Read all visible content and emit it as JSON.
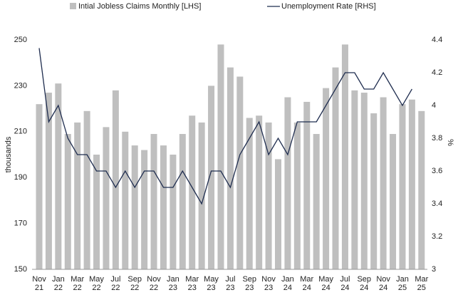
{
  "chart_data": {
    "type": "bar-line",
    "legend": "top",
    "categories": [
      "Nov 21",
      null,
      "Jan 22",
      null,
      "Mar 22",
      null,
      "May 22",
      null,
      "Jul 22",
      null,
      "Sep 22",
      null,
      "Nov 22",
      null,
      "Jan 23",
      null,
      "Mar 23",
      null,
      "May 23",
      null,
      "Jul 23",
      null,
      "Sep 23",
      null,
      "Nov 23",
      null,
      "Jan 24",
      null,
      "Mar 24",
      null,
      "May 24",
      null,
      "Jul 24",
      null,
      "Sep 24",
      null,
      "Nov 24",
      null,
      "Jan 25",
      null,
      "Mar 25"
    ],
    "series": [
      {
        "name": "Intial Jobless Claims Monthly [LHS]",
        "color": "#bfbfbf",
        "kind": "bar",
        "axis": "y",
        "values": [
          222,
          227,
          231,
          209,
          214,
          219,
          200,
          212,
          228,
          210,
          204,
          202,
          209,
          204,
          200,
          209,
          217,
          214,
          230,
          248,
          238,
          234,
          216,
          217,
          214,
          198,
          225,
          214,
          223,
          209,
          229,
          238,
          248,
          228,
          227,
          218,
          225,
          209,
          222,
          224,
          219
        ]
      },
      {
        "name": "Unemployment Rate [RHS]",
        "color": "#1f2d4f",
        "kind": "line",
        "axis": "y2",
        "values": [
          4.35,
          3.9,
          4.0,
          3.8,
          3.7,
          3.7,
          3.6,
          3.6,
          3.5,
          3.6,
          3.5,
          3.6,
          3.6,
          3.5,
          3.5,
          3.6,
          3.5,
          3.4,
          3.6,
          3.6,
          3.5,
          3.7,
          3.8,
          3.9,
          3.7,
          3.8,
          3.7,
          3.9,
          3.9,
          3.9,
          4.0,
          4.1,
          4.2,
          4.2,
          4.1,
          4.1,
          4.2,
          4.1,
          4.0,
          4.1,
          null
        ]
      }
    ],
    "ylabel": "thousands",
    "y2label": "%",
    "ylim": [
      150,
      250
    ],
    "yticks": [
      150,
      170,
      190,
      210,
      230,
      250
    ],
    "y2lim": [
      3,
      4.4
    ],
    "y2ticks": [
      3,
      3.2,
      3.4,
      3.6,
      3.8,
      4,
      4.2,
      4.4
    ],
    "grid": false
  }
}
